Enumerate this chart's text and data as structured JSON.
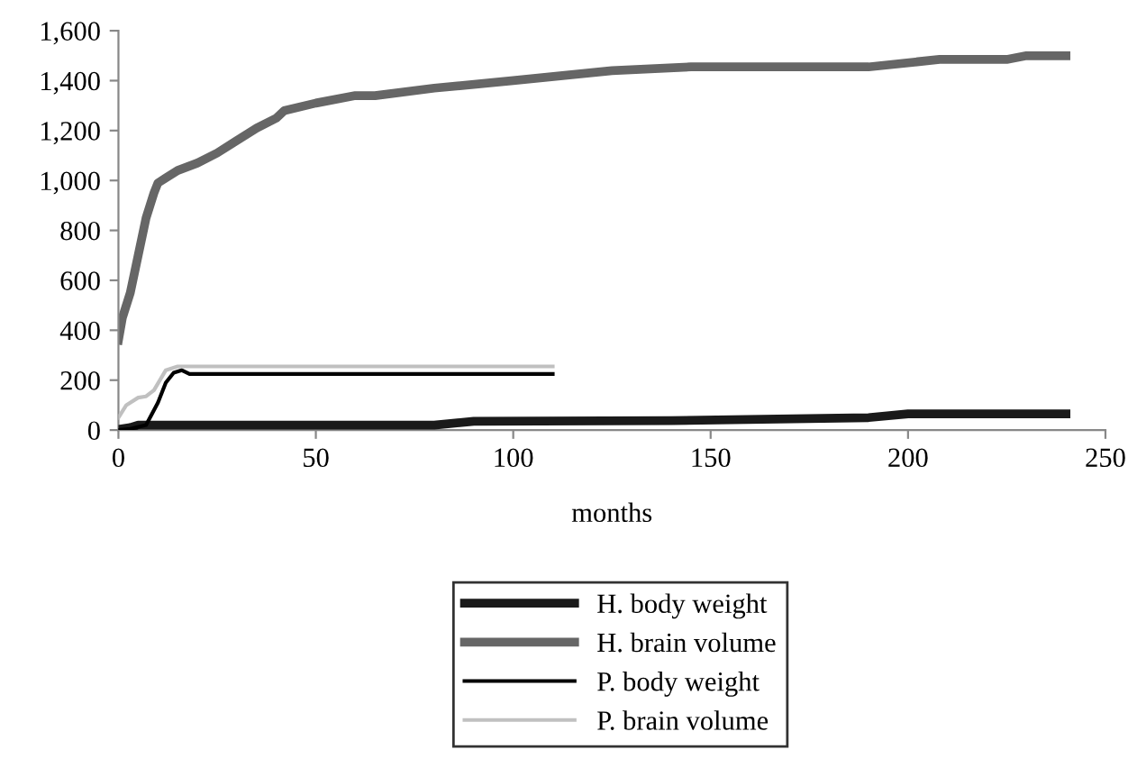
{
  "chart_data": {
    "type": "line",
    "xlabel": "months",
    "xlim": [
      0,
      250
    ],
    "xticks": [
      0,
      50,
      100,
      150,
      200,
      250
    ],
    "ylim": [
      0,
      1600
    ],
    "yticks": [
      {
        "value": 0,
        "label": "0"
      },
      {
        "value": 200,
        "label": "200"
      },
      {
        "value": 400,
        "label": "400"
      },
      {
        "value": 600,
        "label": "600"
      },
      {
        "value": 800,
        "label": "800"
      },
      {
        "value": 1000,
        "label": "1,000"
      },
      {
        "value": 1200,
        "label": "1,200"
      },
      {
        "value": 1400,
        "label": "1,400"
      },
      {
        "value": 1600,
        "label": "1,600"
      }
    ],
    "grid": false,
    "legend": "bottom",
    "marker": "none",
    "line_style": "solid",
    "series": [
      {
        "name": "H. body weight",
        "color": "#1a1a1a",
        "x": [
          0,
          3,
          5,
          10,
          80,
          90,
          140,
          190,
          200,
          240
        ],
        "values": [
          3,
          10,
          20,
          20,
          20,
          35,
          38,
          50,
          65,
          65
        ]
      },
      {
        "name": "H. brain volume",
        "color": "#666666",
        "x": [
          0,
          1,
          3,
          5,
          7,
          9,
          10,
          12,
          15,
          20,
          25,
          30,
          35,
          40,
          42,
          50,
          60,
          65,
          80,
          100,
          125,
          145,
          190,
          208,
          225,
          230,
          240
        ],
        "values": [
          360,
          450,
          550,
          700,
          850,
          950,
          990,
          1010,
          1040,
          1070,
          1110,
          1160,
          1210,
          1250,
          1280,
          1310,
          1340,
          1340,
          1370,
          1400,
          1440,
          1455,
          1455,
          1485,
          1485,
          1500,
          1500
        ]
      },
      {
        "name": "P. body weight",
        "color": "#000000",
        "x": [
          0,
          3,
          7,
          10,
          12,
          14,
          16,
          18,
          110
        ],
        "values": [
          0,
          5,
          20,
          110,
          190,
          230,
          240,
          225,
          225
        ]
      },
      {
        "name": "P. brain volume",
        "color": "#c0c0c0",
        "x": [
          0,
          2,
          5,
          7,
          9,
          12,
          15,
          110
        ],
        "values": [
          50,
          100,
          130,
          135,
          160,
          240,
          255,
          255
        ]
      }
    ]
  }
}
